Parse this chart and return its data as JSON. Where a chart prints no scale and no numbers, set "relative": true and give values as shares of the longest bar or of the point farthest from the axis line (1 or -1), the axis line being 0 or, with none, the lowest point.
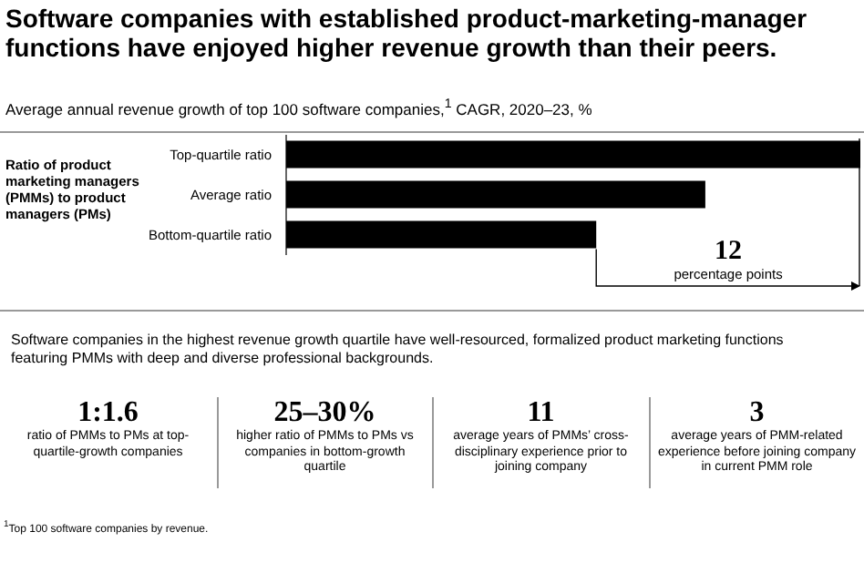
{
  "chart_data": {
    "type": "bar",
    "orientation": "horizontal",
    "relative": true,
    "title": "Software companies with established product-marketing-manager functions have enjoyed higher revenue growth than their peers.",
    "subtitle": "Average annual revenue growth of top 100 software companies,$^{1}$ CAGR, 2020–23, %",
    "ylabel": "Ratio of product marketing managers (PMMs) to product managers (PMs)",
    "categories": [
      "Top-quartile ratio",
      "Average ratio",
      "Bottom-quartile ratio"
    ],
    "values": [
      1,
      0.73,
      0.54
    ],
    "color": "#000000",
    "annotations": [
      "12 percentage points",
      "Software companies in the highest revenue growth quartile have well-resourced, formalized product marketing functions featuring PMMs with deep and diverse professional backgrounds.",
      "1:1.6",
      "ratio of PMMs to PMs at top-quartile-growth companies",
      "25–30%",
      "higher ratio of PMMs to PMs vs companies in bottom-growth quartile",
      "11",
      "average years of PMMs’ cross-disciplinary experience prior to joining company",
      "3",
      "average years of PMM-related experience before joining company in current PMM role",
      "$^{1}$Top 100 software companies by revenue."
    ]
  }
}
